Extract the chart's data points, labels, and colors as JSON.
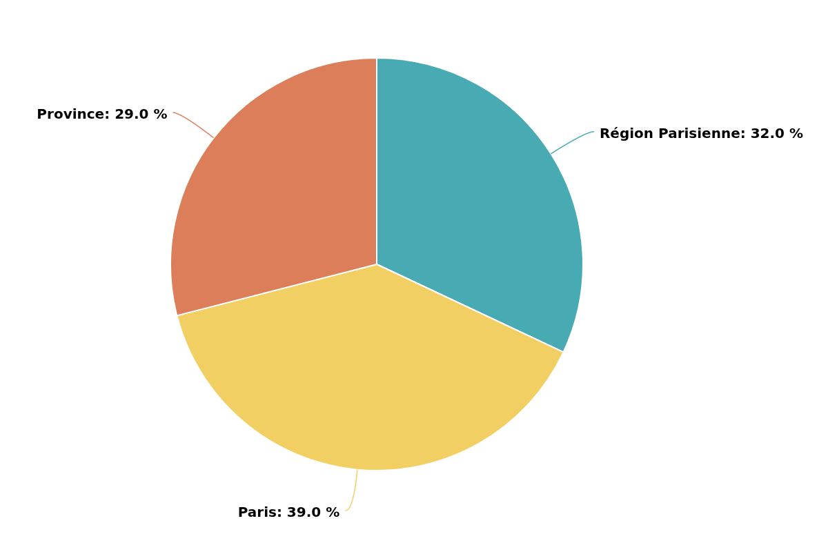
{
  "chart_data": {
    "type": "pie",
    "categories": [
      "Région Parisienne",
      "Paris",
      "Province"
    ],
    "values": [
      32.0,
      39.0,
      29.0
    ],
    "value_labels": [
      "32.0 %",
      "39.0 %",
      "29.0 %"
    ],
    "colors": [
      "#48abb3",
      "#f1cf63",
      "#dd7e5a"
    ],
    "legend": false
  }
}
